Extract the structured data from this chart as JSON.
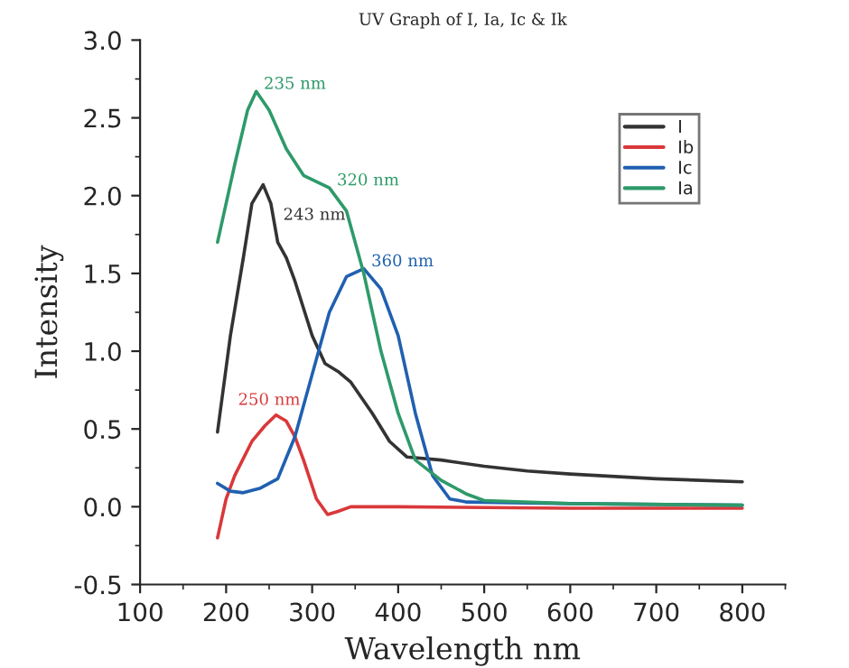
{
  "chart_data": {
    "type": "line",
    "title": "UV Graph of I, Ia, Ic & Ik",
    "xlabel": "Wavelength nm",
    "ylabel": "Intensity",
    "xlim": [
      100,
      850
    ],
    "ylim": [
      -0.5,
      3.0
    ],
    "xticks": [
      100,
      200,
      300,
      400,
      500,
      600,
      700,
      800
    ],
    "yticks": [
      {
        "value": -0.5,
        "label": "-0.5"
      },
      {
        "value": 0.0,
        "label": "0.0"
      },
      {
        "value": 0.5,
        "label": "0.5"
      },
      {
        "value": 1.0,
        "label": "1.0"
      },
      {
        "value": 1.5,
        "label": "1.5"
      },
      {
        "value": 2.0,
        "label": "2.0"
      },
      {
        "value": 2.5,
        "label": "2.5"
      },
      {
        "value": 3.0,
        "label": "3.0"
      }
    ],
    "grid": false,
    "legend": "top right",
    "series": [
      {
        "name": "I",
        "color": "#333333",
        "x": [
          190,
          205,
          220,
          230,
          243,
          252,
          260,
          270,
          280,
          300,
          315,
          330,
          345,
          370,
          390,
          410,
          450,
          500,
          550,
          600,
          700,
          800
        ],
        "values": [
          0.48,
          1.1,
          1.6,
          1.95,
          2.07,
          1.95,
          1.7,
          1.6,
          1.45,
          1.1,
          0.92,
          0.87,
          0.8,
          0.6,
          0.42,
          0.32,
          0.3,
          0.26,
          0.23,
          0.21,
          0.18,
          0.16
        ]
      },
      {
        "name": "Ib",
        "color": "#d9383a",
        "x": [
          190,
          200,
          210,
          230,
          245,
          258,
          270,
          280,
          290,
          305,
          318,
          330,
          345,
          400,
          600,
          800
        ],
        "values": [
          -0.2,
          0.05,
          0.2,
          0.42,
          0.52,
          0.59,
          0.55,
          0.45,
          0.3,
          0.05,
          -0.05,
          -0.03,
          0.0,
          0.0,
          -0.01,
          -0.01
        ]
      },
      {
        "name": "Ic",
        "color": "#2060b0",
        "x": [
          190,
          205,
          220,
          240,
          260,
          280,
          300,
          320,
          340,
          360,
          380,
          400,
          420,
          440,
          460,
          480,
          600,
          800
        ],
        "values": [
          0.15,
          0.1,
          0.09,
          0.12,
          0.18,
          0.45,
          0.85,
          1.25,
          1.48,
          1.53,
          1.4,
          1.1,
          0.6,
          0.2,
          0.05,
          0.03,
          0.02,
          0.01
        ]
      },
      {
        "name": "Ia",
        "color": "#2e9a6a",
        "x": [
          190,
          210,
          225,
          235,
          250,
          270,
          290,
          320,
          340,
          360,
          380,
          400,
          420,
          450,
          480,
          500,
          600,
          800
        ],
        "values": [
          1.7,
          2.2,
          2.55,
          2.67,
          2.55,
          2.3,
          2.13,
          2.05,
          1.9,
          1.5,
          1.0,
          0.6,
          0.3,
          0.17,
          0.08,
          0.04,
          0.02,
          0.01
        ]
      }
    ],
    "annotations": [
      {
        "text": "235 nm",
        "x": 235,
        "y": 2.67
      },
      {
        "text": "243 nm",
        "x": 243,
        "y": 2.07
      },
      {
        "text": "320 nm",
        "x": 320,
        "y": 2.05
      },
      {
        "text": "360 nm",
        "x": 360,
        "y": 1.53
      },
      {
        "text": "250 nm",
        "x": 250,
        "y": 0.59
      }
    ]
  }
}
